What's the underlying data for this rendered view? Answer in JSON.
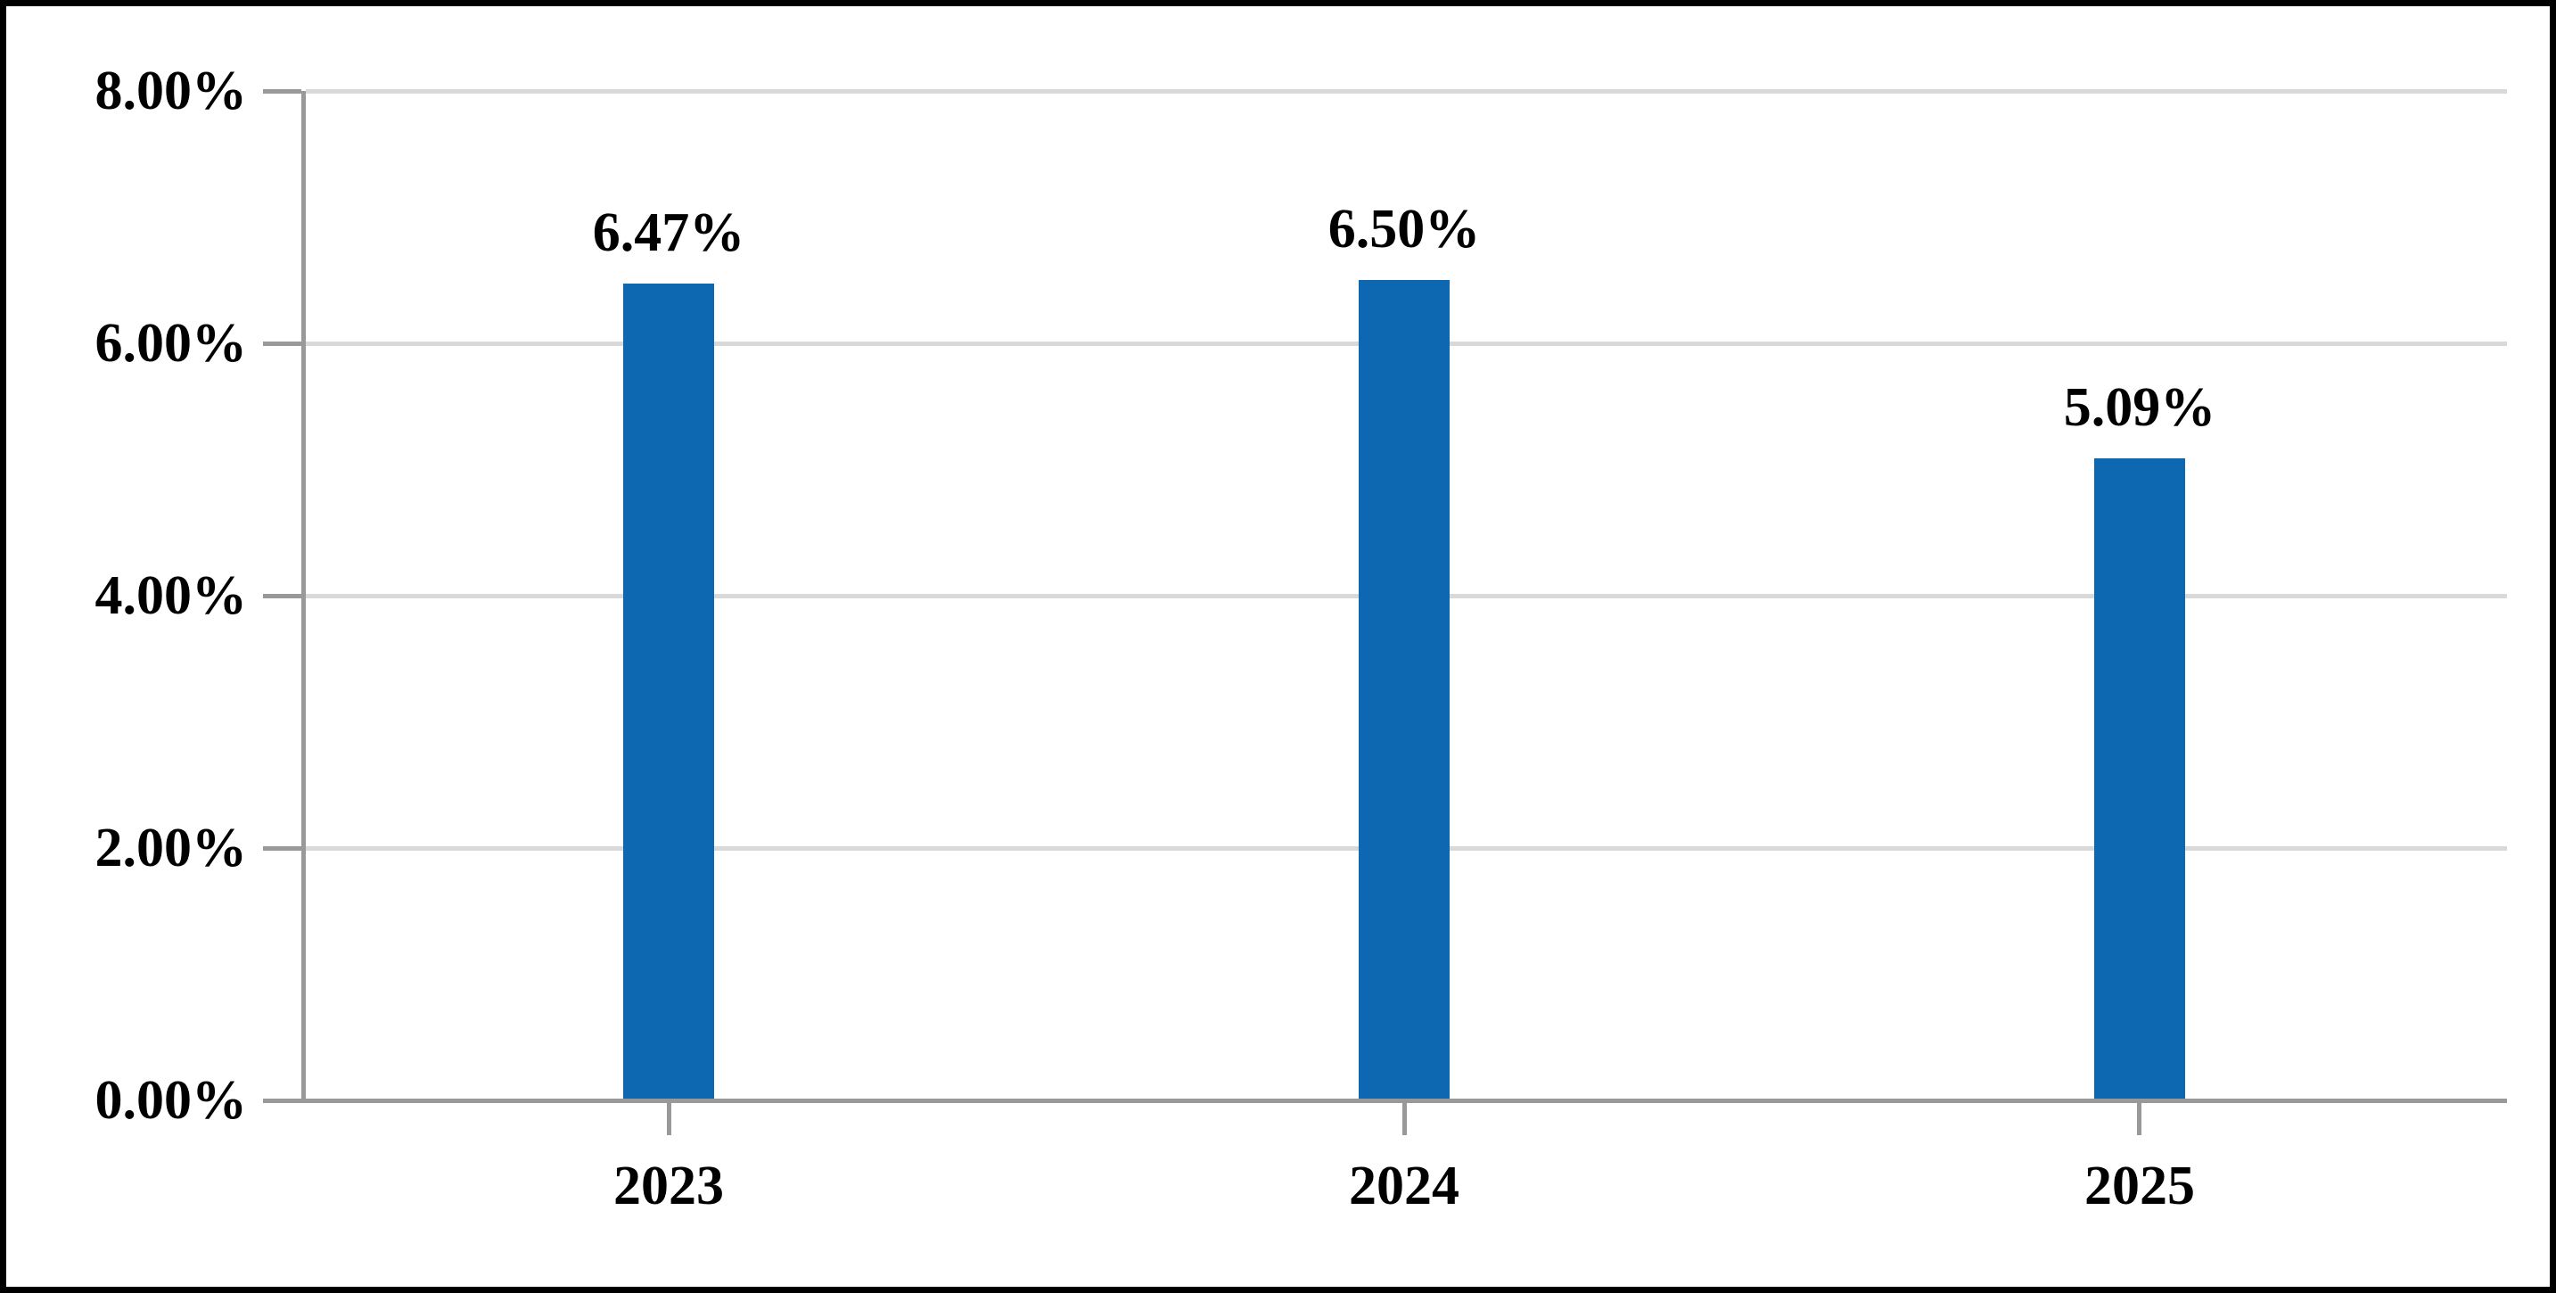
{
  "chart_data": {
    "type": "bar",
    "title": "",
    "xlabel": "",
    "ylabel": "",
    "categories": [
      "2023",
      "2024",
      "2025"
    ],
    "values": [
      6.47,
      6.5,
      5.09
    ],
    "data_labels": [
      "6.47%",
      "6.50%",
      "5.09%"
    ],
    "ylim": [
      0,
      8
    ],
    "y_tick_values": [
      0,
      2,
      4,
      6,
      8
    ],
    "y_tick_labels": [
      "0.00%",
      "2.00%",
      "4.00%",
      "6.00%",
      "8.00%"
    ],
    "grid": true,
    "legend": "none",
    "colors": {
      "bar": "#0D68B1",
      "axis": "#999999",
      "gridline": "#D9D9D9",
      "text": "#000000",
      "frame_border": "#000000",
      "background": "#FFFFFF"
    }
  }
}
